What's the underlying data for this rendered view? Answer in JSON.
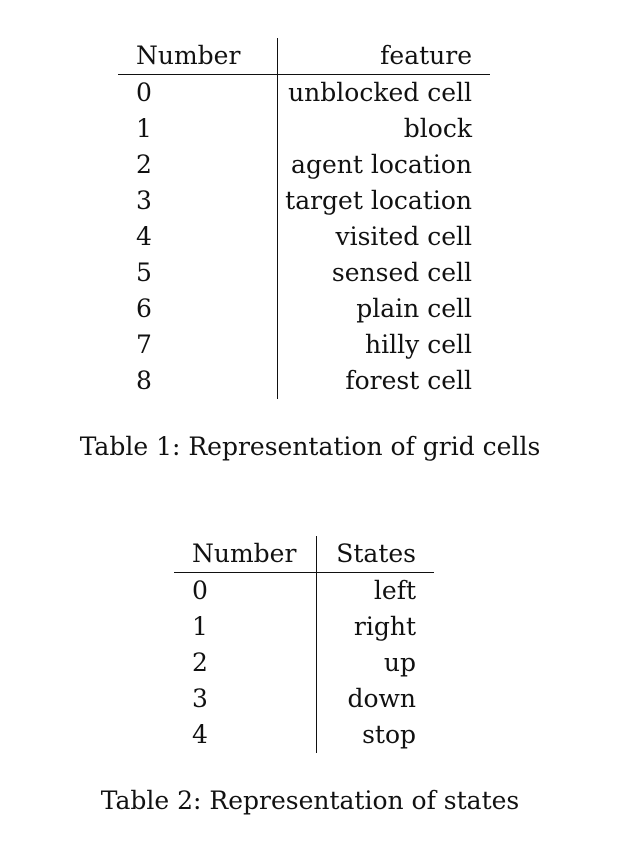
{
  "table1": {
    "headers": [
      "Number",
      "feature"
    ],
    "rows": [
      [
        "0",
        "unblocked cell"
      ],
      [
        "1",
        "block"
      ],
      [
        "2",
        "agent location"
      ],
      [
        "3",
        "target location"
      ],
      [
        "4",
        "visited cell"
      ],
      [
        "5",
        "sensed cell"
      ],
      [
        "6",
        "plain cell"
      ],
      [
        "7",
        "hilly cell"
      ],
      [
        "8",
        "forest cell"
      ]
    ],
    "caption": "Table 1:  Representation of grid cells"
  },
  "table2": {
    "headers": [
      "Number",
      "States"
    ],
    "rows": [
      [
        "0",
        "left"
      ],
      [
        "1",
        "right"
      ],
      [
        "2",
        "up"
      ],
      [
        "3",
        "down"
      ],
      [
        "4",
        "stop"
      ]
    ],
    "caption": "Table 2:  Representation of states"
  }
}
